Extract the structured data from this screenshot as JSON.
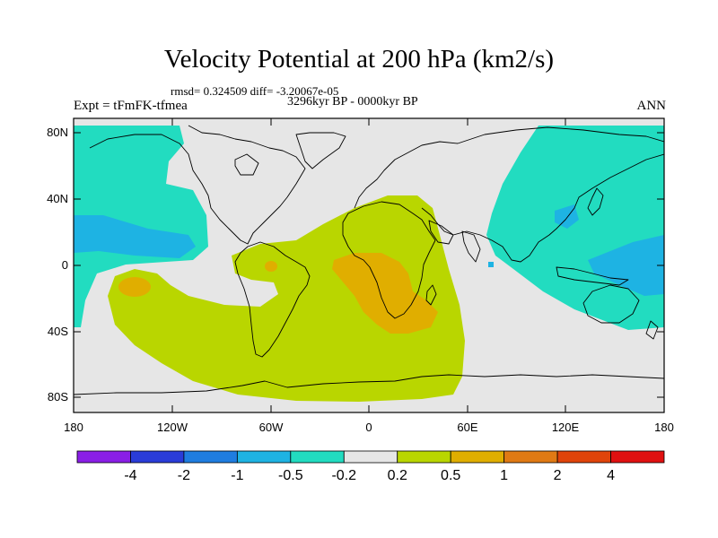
{
  "header": {
    "title": "Velocity Potential at 200 hPa (km2/s)",
    "stats": "rmsd= 0.324509 diff= -3.20067e-05",
    "period": "3296kyr BP - 0000kyr BP",
    "experiment": "Expt = tFmFK-tfmea",
    "season": "ANN"
  },
  "axes": {
    "lat_labels": [
      "80N",
      "40N",
      "0",
      "40S",
      "80S"
    ],
    "lon_labels": [
      "180",
      "120W",
      "60W",
      "0",
      "60E",
      "120E",
      "180"
    ]
  },
  "colorbar": {
    "labels": [
      "-4",
      "-2",
      "-1",
      "-0.5",
      "-0.2",
      "0.2",
      "0.5",
      "1",
      "2",
      "4"
    ],
    "colors": [
      "#8a1ee6",
      "#2a3cd8",
      "#1f7de0",
      "#1eb3e3",
      "#22dcc0",
      "#e6e6e6",
      "#b9d600",
      "#e0ae00",
      "#e07a14",
      "#e0440a",
      "#e01010"
    ]
  },
  "colors": {
    "land_neutral": "#e6e6e6",
    "positive_light": "#b9d600",
    "positive_mid": "#e0ae00",
    "positive_high": "#e07a14",
    "negative_light": "#22dcc0",
    "negative_mid": "#1eb3e3"
  }
}
